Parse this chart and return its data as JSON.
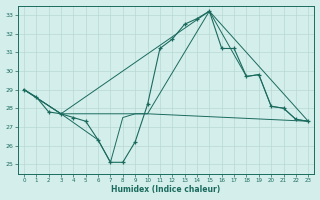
{
  "xlabel": "Humidex (Indice chaleur)",
  "bg_color": "#d4eeeb",
  "grid_color": "#b8d8d4",
  "line_color": "#1a6b5e",
  "xlim": [
    -0.5,
    23.5
  ],
  "ylim": [
    24.5,
    33.5
  ],
  "xticks": [
    0,
    1,
    2,
    3,
    4,
    5,
    6,
    7,
    8,
    9,
    10,
    11,
    12,
    13,
    14,
    15,
    16,
    17,
    18,
    19,
    20,
    21,
    22,
    23
  ],
  "yticks": [
    25,
    26,
    27,
    28,
    29,
    30,
    31,
    32,
    33
  ],
  "line_main": [
    [
      0,
      29.0
    ],
    [
      1,
      28.6
    ],
    [
      2,
      27.8
    ],
    [
      3,
      27.7
    ],
    [
      4,
      27.5
    ],
    [
      5,
      27.3
    ],
    [
      6,
      26.3
    ],
    [
      7,
      25.1
    ],
    [
      8,
      25.1
    ],
    [
      9,
      26.2
    ],
    [
      10,
      28.2
    ],
    [
      11,
      31.2
    ],
    [
      12,
      31.7
    ],
    [
      13,
      32.5
    ],
    [
      14,
      32.8
    ],
    [
      15,
      33.2
    ],
    [
      16,
      31.2
    ],
    [
      17,
      31.2
    ],
    [
      18,
      29.7
    ],
    [
      19,
      29.8
    ],
    [
      20,
      28.1
    ],
    [
      21,
      28.0
    ],
    [
      22,
      27.4
    ],
    [
      23,
      27.3
    ]
  ],
  "line_flat": [
    [
      0,
      29.0
    ],
    [
      3,
      27.7
    ],
    [
      10,
      27.7
    ],
    [
      23,
      27.3
    ]
  ],
  "line_triangle_upper": [
    [
      0,
      29.0
    ],
    [
      3,
      27.7
    ],
    [
      15,
      33.2
    ],
    [
      23,
      27.3
    ]
  ],
  "line_lower": [
    [
      0,
      29.0
    ],
    [
      3,
      27.7
    ],
    [
      6,
      26.3
    ],
    [
      7,
      25.1
    ],
    [
      8,
      27.5
    ],
    [
      9,
      27.7
    ],
    [
      10,
      27.7
    ],
    [
      15,
      33.2
    ],
    [
      18,
      29.7
    ],
    [
      19,
      29.8
    ],
    [
      20,
      28.1
    ],
    [
      21,
      28.0
    ],
    [
      22,
      27.4
    ],
    [
      23,
      27.3
    ]
  ]
}
